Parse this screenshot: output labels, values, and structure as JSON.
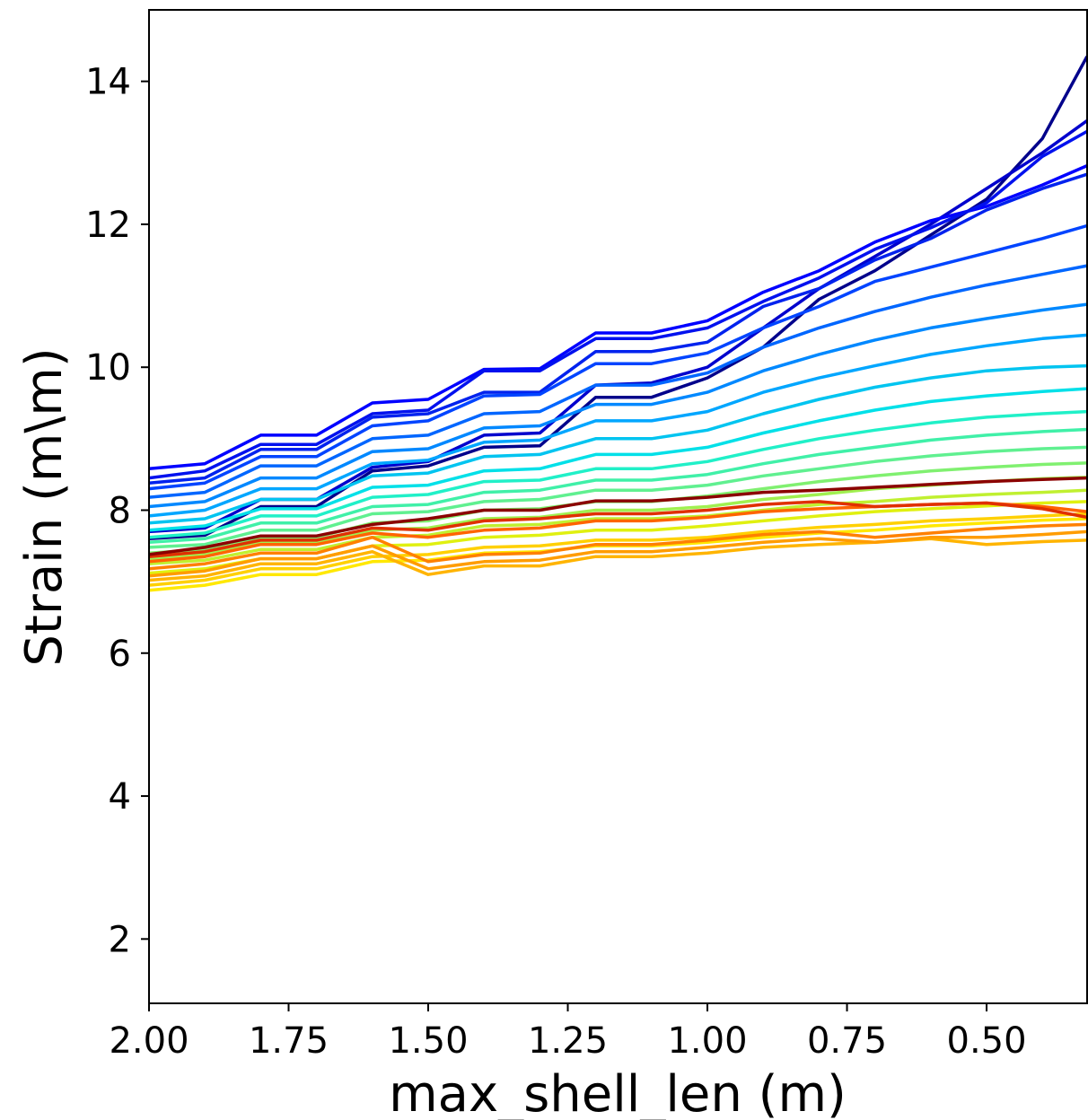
{
  "chart_data": {
    "type": "line",
    "title": "",
    "xlabel": "max_shell_len (m)",
    "ylabel": "Strain (m\\m)",
    "xlim": [
      2.0,
      0.32
    ],
    "ylim": [
      1.1,
      15.0
    ],
    "x_inverted": true,
    "grid": false,
    "legend": "none",
    "x_ticks": [
      {
        "value": 2.0,
        "label": "2.00"
      },
      {
        "value": 1.75,
        "label": "1.75"
      },
      {
        "value": 1.5,
        "label": "1.50"
      },
      {
        "value": 1.25,
        "label": "1.25"
      },
      {
        "value": 1.0,
        "label": "1.00"
      },
      {
        "value": 0.75,
        "label": "0.75"
      },
      {
        "value": 0.5,
        "label": "0.50"
      }
    ],
    "y_ticks": [
      {
        "value": 2,
        "label": "2"
      },
      {
        "value": 4,
        "label": "4"
      },
      {
        "value": 6,
        "label": "6"
      },
      {
        "value": 8,
        "label": "8"
      },
      {
        "value": 10,
        "label": "10"
      },
      {
        "value": 12,
        "label": "12"
      },
      {
        "value": 14,
        "label": "14"
      }
    ],
    "x": [
      2.0,
      1.9,
      1.8,
      1.7,
      1.6,
      1.5,
      1.4,
      1.3,
      1.2,
      1.1,
      1.0,
      0.9,
      0.8,
      0.7,
      0.6,
      0.5,
      0.4,
      0.32
    ],
    "series": [
      {
        "color": "#00008b",
        "values": [
          7.6,
          7.65,
          8.05,
          8.05,
          8.55,
          8.62,
          8.88,
          8.9,
          9.58,
          9.58,
          9.85,
          10.28,
          10.95,
          11.35,
          11.85,
          12.35,
          13.2,
          14.35
        ]
      },
      {
        "color": "#0000cd",
        "values": [
          7.7,
          7.75,
          8.15,
          8.15,
          8.6,
          8.68,
          9.05,
          9.08,
          9.75,
          9.78,
          10.0,
          10.55,
          11.1,
          11.55,
          12.0,
          12.5,
          13.0,
          13.45
        ]
      },
      {
        "color": "#0000ff",
        "values": [
          8.58,
          8.65,
          9.05,
          9.05,
          9.5,
          9.55,
          9.97,
          9.98,
          10.48,
          10.48,
          10.65,
          11.05,
          11.35,
          11.75,
          12.05,
          12.25,
          12.55,
          12.82
        ]
      },
      {
        "color": "#0011ee",
        "values": [
          8.45,
          8.55,
          8.92,
          8.92,
          9.35,
          9.4,
          9.95,
          9.95,
          10.4,
          10.4,
          10.55,
          10.92,
          11.25,
          11.65,
          11.95,
          12.3,
          12.95,
          13.3
        ]
      },
      {
        "color": "#0022ee",
        "values": [
          8.38,
          8.45,
          8.85,
          8.85,
          9.3,
          9.35,
          9.65,
          9.65,
          10.22,
          10.22,
          10.35,
          10.85,
          11.1,
          11.5,
          11.8,
          12.2,
          12.5,
          12.7
        ]
      },
      {
        "color": "#0044ff",
        "values": [
          8.3,
          8.38,
          8.75,
          8.75,
          9.18,
          9.25,
          9.6,
          9.62,
          10.05,
          10.05,
          10.2,
          10.55,
          10.85,
          11.2,
          11.4,
          11.6,
          11.8,
          11.98
        ]
      },
      {
        "color": "#0066ff",
        "values": [
          8.18,
          8.25,
          8.62,
          8.62,
          9.0,
          9.05,
          9.35,
          9.38,
          9.75,
          9.75,
          9.92,
          10.28,
          10.55,
          10.78,
          10.98,
          11.15,
          11.3,
          11.42
        ]
      },
      {
        "color": "#0088ff",
        "values": [
          8.05,
          8.12,
          8.45,
          8.45,
          8.82,
          8.86,
          9.15,
          9.18,
          9.48,
          9.48,
          9.65,
          9.95,
          10.18,
          10.38,
          10.55,
          10.68,
          10.8,
          10.88
        ]
      },
      {
        "color": "#00a6ff",
        "values": [
          7.92,
          8.0,
          8.3,
          8.3,
          8.65,
          8.7,
          8.95,
          8.98,
          9.25,
          9.25,
          9.38,
          9.65,
          9.85,
          10.02,
          10.18,
          10.3,
          10.4,
          10.45
        ]
      },
      {
        "color": "#00c4f0",
        "values": [
          7.82,
          7.88,
          8.15,
          8.15,
          8.48,
          8.52,
          8.75,
          8.78,
          9.0,
          9.0,
          9.12,
          9.35,
          9.55,
          9.72,
          9.85,
          9.95,
          10.0,
          10.02
        ]
      },
      {
        "color": "#00e0e8",
        "values": [
          7.72,
          7.78,
          8.02,
          8.02,
          8.32,
          8.35,
          8.55,
          8.58,
          8.78,
          8.78,
          8.88,
          9.08,
          9.25,
          9.4,
          9.52,
          9.6,
          9.66,
          9.7
        ]
      },
      {
        "color": "#20f0c8",
        "values": [
          7.62,
          7.68,
          7.92,
          7.92,
          8.18,
          8.22,
          8.4,
          8.42,
          8.58,
          8.58,
          8.68,
          8.85,
          9.0,
          9.12,
          9.22,
          9.3,
          9.35,
          9.38
        ]
      },
      {
        "color": "#40f0a8",
        "values": [
          7.55,
          7.6,
          7.82,
          7.82,
          8.05,
          8.08,
          8.25,
          8.28,
          8.42,
          8.42,
          8.5,
          8.65,
          8.78,
          8.88,
          8.98,
          9.05,
          9.1,
          9.13
        ]
      },
      {
        "color": "#60f090",
        "values": [
          7.48,
          7.52,
          7.72,
          7.72,
          7.95,
          7.98,
          8.12,
          8.15,
          8.28,
          8.28,
          8.35,
          8.48,
          8.58,
          8.68,
          8.76,
          8.82,
          8.86,
          8.88
        ]
      },
      {
        "color": "#80f070",
        "values": [
          7.4,
          7.45,
          7.62,
          7.62,
          7.82,
          7.85,
          8.0,
          8.02,
          8.12,
          8.12,
          8.2,
          8.3,
          8.4,
          8.48,
          8.55,
          8.6,
          8.64,
          8.66
        ]
      },
      {
        "color": "#a0f050",
        "values": [
          7.32,
          7.38,
          7.55,
          7.55,
          7.72,
          7.75,
          7.88,
          7.9,
          8.0,
          8.0,
          8.05,
          8.15,
          8.22,
          8.3,
          8.35,
          8.4,
          8.44,
          8.46
        ]
      },
      {
        "color": "#c0f030",
        "values": [
          7.25,
          7.3,
          7.45,
          7.45,
          7.62,
          7.65,
          7.78,
          7.8,
          7.88,
          7.88,
          7.92,
          8.0,
          8.08,
          8.12,
          8.18,
          8.22,
          8.25,
          8.28
        ]
      },
      {
        "color": "#e0f010",
        "values": [
          7.12,
          7.18,
          7.32,
          7.32,
          7.5,
          7.52,
          7.62,
          7.65,
          7.72,
          7.72,
          7.78,
          7.85,
          7.92,
          7.98,
          8.02,
          8.06,
          8.1,
          8.12
        ]
      },
      {
        "color": "#ffe800",
        "values": [
          6.88,
          6.95,
          7.1,
          7.1,
          7.28,
          7.3,
          7.4,
          7.42,
          7.5,
          7.5,
          7.55,
          7.62,
          7.68,
          7.72,
          7.78,
          7.82,
          7.86,
          7.88
        ]
      },
      {
        "color": "#ffd000",
        "values": [
          6.95,
          7.02,
          7.18,
          7.18,
          7.35,
          7.38,
          7.48,
          7.5,
          7.58,
          7.58,
          7.62,
          7.7,
          7.76,
          7.8,
          7.85,
          7.88,
          7.92,
          7.95
        ]
      },
      {
        "color": "#ffb400",
        "values": [
          7.02,
          7.08,
          7.25,
          7.25,
          7.42,
          7.1,
          7.22,
          7.22,
          7.35,
          7.35,
          7.4,
          7.48,
          7.52,
          7.55,
          7.6,
          7.52,
          7.56,
          7.58
        ]
      },
      {
        "color": "#ff9c00",
        "values": [
          7.08,
          7.15,
          7.32,
          7.32,
          7.5,
          7.18,
          7.28,
          7.3,
          7.42,
          7.42,
          7.48,
          7.55,
          7.6,
          7.55,
          7.62,
          7.62,
          7.66,
          7.7
        ]
      },
      {
        "color": "#ff8000",
        "values": [
          7.18,
          7.25,
          7.4,
          7.4,
          7.62,
          7.28,
          7.38,
          7.4,
          7.52,
          7.52,
          7.58,
          7.66,
          7.7,
          7.62,
          7.68,
          7.74,
          7.78,
          7.8
        ]
      },
      {
        "color": "#ff6400",
        "values": [
          7.28,
          7.35,
          7.52,
          7.52,
          7.68,
          7.62,
          7.72,
          7.75,
          7.85,
          7.85,
          7.9,
          7.98,
          8.02,
          8.05,
          8.08,
          8.1,
          8.05,
          7.98
        ]
      },
      {
        "color": "#e03000",
        "values": [
          7.35,
          7.42,
          7.58,
          7.58,
          7.75,
          7.72,
          7.85,
          7.88,
          7.95,
          7.95,
          8.0,
          8.08,
          8.12,
          8.05,
          8.08,
          8.1,
          8.02,
          7.9
        ]
      },
      {
        "color": "#8b0000",
        "values": [
          7.38,
          7.48,
          7.64,
          7.64,
          7.8,
          7.88,
          8.0,
          8.0,
          8.13,
          8.13,
          8.18,
          8.25,
          8.28,
          8.32,
          8.36,
          8.4,
          8.43,
          8.45
        ]
      }
    ]
  }
}
